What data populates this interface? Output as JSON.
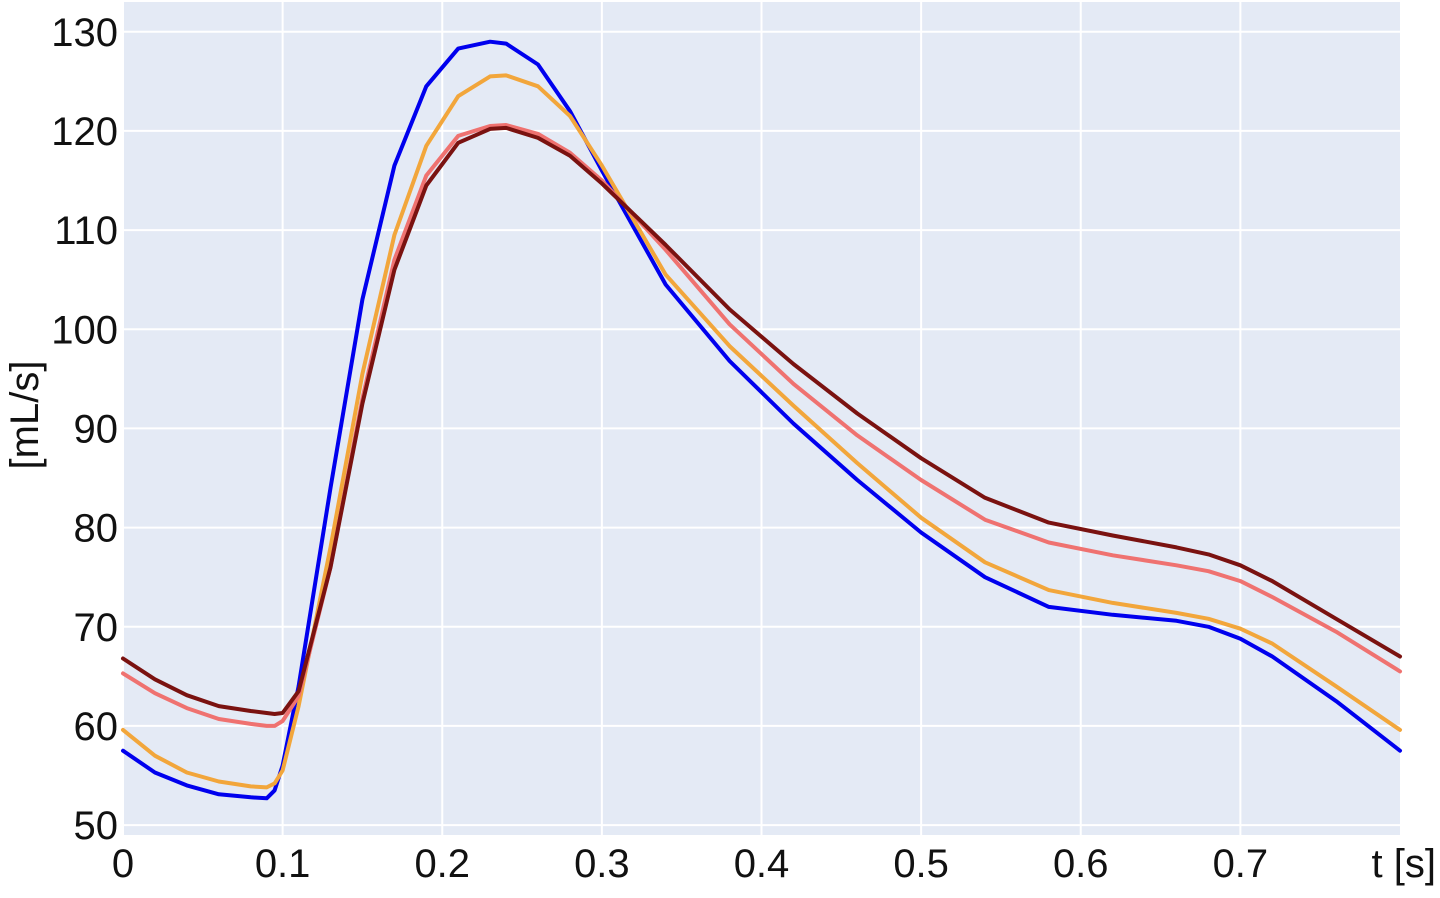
{
  "chart_data": {
    "type": "line",
    "title": "",
    "xlabel": "t [s]",
    "ylabel": "[mL/s]",
    "xlim": [
      0,
      0.8
    ],
    "ylim": [
      49,
      133
    ],
    "xticks": [
      0,
      0.1,
      0.2,
      0.3,
      0.4,
      0.5,
      0.6,
      0.7
    ],
    "xtick_labels": [
      "0",
      "0.1",
      "0.2",
      "0.3",
      "0.4",
      "0.5",
      "0.6",
      "0.7"
    ],
    "yticks": [
      50,
      60,
      70,
      80,
      90,
      100,
      110,
      120,
      130
    ],
    "ytick_labels": [
      "50",
      "60",
      "70",
      "80",
      "90",
      "100",
      "110",
      "120",
      "130"
    ],
    "grid": true,
    "background": "#e4eaf5",
    "grid_color": "#ffffff",
    "series": [
      {
        "color": "#0000ee",
        "x": [
          0,
          0.02,
          0.04,
          0.06,
          0.08,
          0.09,
          0.095,
          0.1,
          0.11,
          0.13,
          0.15,
          0.17,
          0.19,
          0.21,
          0.23,
          0.24,
          0.26,
          0.28,
          0.3,
          0.34,
          0.38,
          0.42,
          0.46,
          0.5,
          0.54,
          0.58,
          0.62,
          0.66,
          0.68,
          0.7,
          0.72,
          0.76,
          0.8
        ],
        "y": [
          57.5,
          55.3,
          54.0,
          53.1,
          52.8,
          52.7,
          53.5,
          56.0,
          64.0,
          84.0,
          103.0,
          116.5,
          124.5,
          128.3,
          129.0,
          128.8,
          126.7,
          122.0,
          116.0,
          104.5,
          96.8,
          90.5,
          84.8,
          79.5,
          75.0,
          72.0,
          71.2,
          70.6,
          70.0,
          68.8,
          67.0,
          62.5,
          57.5
        ]
      },
      {
        "color": "#f2a63b",
        "x": [
          0,
          0.02,
          0.04,
          0.06,
          0.08,
          0.09,
          0.095,
          0.1,
          0.11,
          0.13,
          0.15,
          0.17,
          0.19,
          0.21,
          0.23,
          0.24,
          0.26,
          0.28,
          0.3,
          0.34,
          0.38,
          0.42,
          0.46,
          0.5,
          0.54,
          0.58,
          0.62,
          0.66,
          0.68,
          0.7,
          0.72,
          0.76,
          0.8
        ],
        "y": [
          59.6,
          57.0,
          55.3,
          54.4,
          53.9,
          53.8,
          54.2,
          55.5,
          62.0,
          78.0,
          95.5,
          109.5,
          118.5,
          123.5,
          125.5,
          125.6,
          124.5,
          121.5,
          116.5,
          105.5,
          98.3,
          92.3,
          86.5,
          81.0,
          76.5,
          73.7,
          72.4,
          71.4,
          70.8,
          69.8,
          68.3,
          64.0,
          59.6
        ]
      },
      {
        "color": "#ef7270",
        "x": [
          0,
          0.02,
          0.04,
          0.06,
          0.08,
          0.09,
          0.095,
          0.1,
          0.11,
          0.13,
          0.15,
          0.17,
          0.19,
          0.21,
          0.23,
          0.24,
          0.26,
          0.28,
          0.3,
          0.34,
          0.38,
          0.42,
          0.46,
          0.5,
          0.54,
          0.58,
          0.62,
          0.66,
          0.68,
          0.7,
          0.72,
          0.76,
          0.8
        ],
        "y": [
          65.3,
          63.3,
          61.8,
          60.7,
          60.2,
          60.0,
          60.0,
          60.5,
          63.0,
          76.0,
          93.0,
          107.0,
          115.5,
          119.5,
          120.5,
          120.6,
          119.7,
          117.8,
          115.0,
          108.0,
          100.5,
          94.5,
          89.3,
          84.8,
          80.8,
          78.5,
          77.2,
          76.2,
          75.6,
          74.6,
          73.0,
          69.5,
          65.5
        ]
      },
      {
        "color": "#7a1210",
        "x": [
          0,
          0.02,
          0.04,
          0.06,
          0.08,
          0.09,
          0.095,
          0.1,
          0.11,
          0.13,
          0.15,
          0.17,
          0.19,
          0.21,
          0.23,
          0.24,
          0.26,
          0.28,
          0.3,
          0.34,
          0.38,
          0.42,
          0.46,
          0.5,
          0.54,
          0.58,
          0.62,
          0.66,
          0.68,
          0.7,
          0.72,
          0.76,
          0.8
        ],
        "y": [
          66.8,
          64.7,
          63.1,
          62.0,
          61.5,
          61.3,
          61.2,
          61.3,
          63.5,
          76.0,
          92.5,
          106.0,
          114.5,
          118.8,
          120.2,
          120.3,
          119.3,
          117.5,
          114.7,
          108.5,
          102.0,
          96.5,
          91.5,
          87.0,
          83.0,
          80.5,
          79.2,
          78.0,
          77.3,
          76.2,
          74.6,
          70.8,
          67.0
        ]
      }
    ]
  }
}
